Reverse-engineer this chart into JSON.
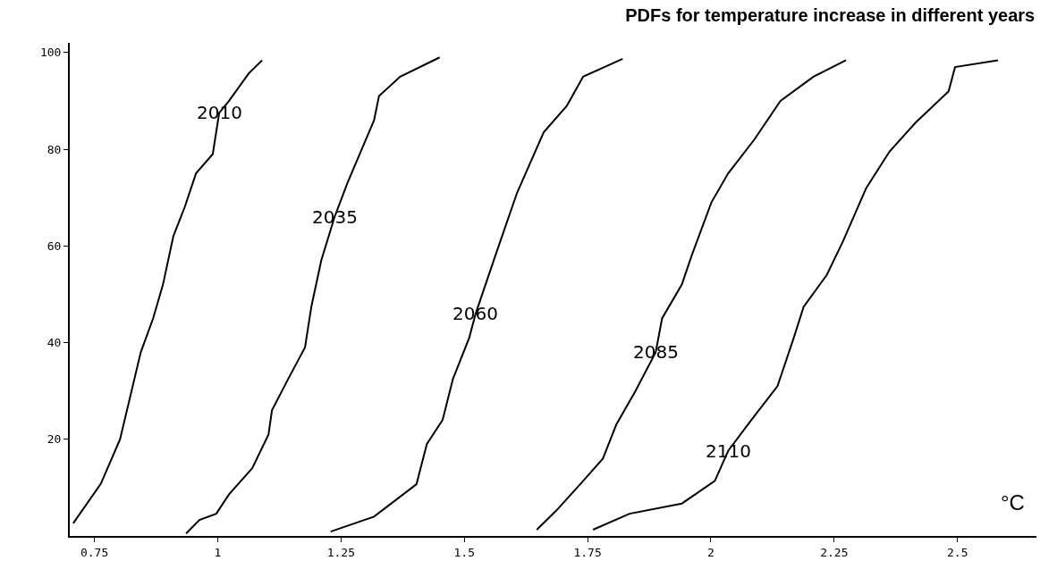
{
  "chart_data": {
    "type": "line",
    "title": "PDFs for temperature increase in different years",
    "xlabel": "°C",
    "xlim": [
      0.7,
      2.66
    ],
    "ylim": [
      0,
      102
    ],
    "xticks": [
      0.75,
      1,
      1.25,
      1.5,
      1.75,
      2,
      2.25,
      2.5
    ],
    "yticks": [
      20,
      40,
      60,
      80,
      100
    ],
    "marker": "none",
    "line_style": "solid",
    "series": [
      {
        "color": "#000000",
        "x": [
          0.707,
          0.763,
          0.802,
          0.844,
          0.869,
          0.889,
          0.91,
          0.933,
          0.956,
          0.99,
          1.003,
          1.023,
          1.063,
          1.09
        ],
        "values": [
          2.6,
          10.8,
          20,
          38,
          45,
          52,
          62,
          68,
          75,
          79,
          87.5,
          90,
          95.7,
          98.4
        ]
      },
      {
        "color": "#000000",
        "x": [
          0.936,
          0.963,
          0.997,
          1.023,
          1.07,
          1.103,
          1.11,
          1.143,
          1.177,
          1.19,
          1.21,
          1.237,
          1.263,
          1.317,
          1.327,
          1.37,
          1.45
        ],
        "values": [
          0.5,
          3.3,
          4.6,
          8.6,
          14,
          21,
          26,
          32.5,
          39,
          47.5,
          57,
          66,
          73,
          86,
          91,
          95,
          99
        ]
      },
      {
        "color": "#000000",
        "x": [
          1.229,
          1.317,
          1.403,
          1.424,
          1.456,
          1.477,
          1.51,
          1.523,
          1.563,
          1.607,
          1.661,
          1.708,
          1.741,
          1.821
        ],
        "values": [
          0.9,
          4,
          10.7,
          19,
          24,
          32.5,
          41,
          46,
          58,
          71,
          83.5,
          89,
          95,
          98.7
        ]
      },
      {
        "color": "#000000",
        "x": [
          1.647,
          1.687,
          1.741,
          1.781,
          1.808,
          1.847,
          1.888,
          1.901,
          1.941,
          1.961,
          2.001,
          2.035,
          2.088,
          2.141,
          2.208,
          2.274
        ],
        "values": [
          1.3,
          5.3,
          11.4,
          16,
          23,
          30,
          38,
          45,
          52,
          58,
          69,
          75,
          82,
          90,
          95,
          98.4
        ]
      },
      {
        "color": "#000000",
        "x": [
          1.761,
          1.835,
          1.941,
          2.008,
          2.035,
          2.082,
          2.135,
          2.168,
          2.188,
          2.235,
          2.268,
          2.315,
          2.362,
          2.415,
          2.482,
          2.495,
          2.582
        ],
        "values": [
          1.3,
          4.6,
          6.7,
          11.4,
          17.6,
          24,
          31,
          41,
          47.4,
          54,
          61,
          72,
          79.5,
          85.5,
          92,
          97,
          98.4
        ]
      }
    ],
    "annotations": [
      {
        "text": "2010",
        "x": 1.003,
        "y": 87.5
      },
      {
        "text": "2035",
        "x": 1.237,
        "y": 66
      },
      {
        "text": "2060",
        "x": 1.523,
        "y": 46
      },
      {
        "text": "2085",
        "x": 1.888,
        "y": 38
      },
      {
        "text": "2110",
        "x": 2.035,
        "y": 17.6
      }
    ]
  }
}
